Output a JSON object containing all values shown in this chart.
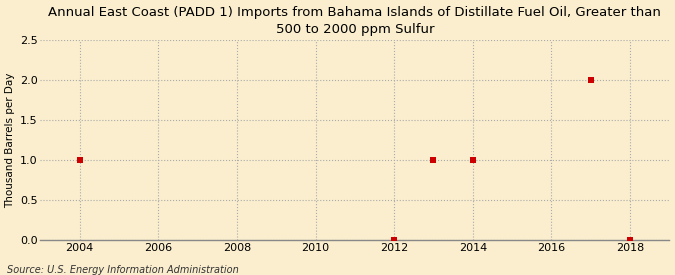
{
  "title": "Annual East Coast (PADD 1) Imports from Bahama Islands of Distillate Fuel Oil, Greater than\n500 to 2000 ppm Sulfur",
  "ylabel": "Thousand Barrels per Day",
  "source": "Source: U.S. Energy Information Administration",
  "background_color": "#faeece",
  "data_x": [
    2004,
    2012,
    2013,
    2014,
    2017,
    2018
  ],
  "data_y": [
    1.0,
    0.0,
    1.0,
    1.0,
    2.0,
    0.0
  ],
  "marker_color": "#cc0000",
  "marker_size": 5,
  "xlim": [
    2003.0,
    2019.0
  ],
  "ylim": [
    0.0,
    2.5
  ],
  "xticks": [
    2004,
    2006,
    2008,
    2010,
    2012,
    2014,
    2016,
    2018
  ],
  "yticks": [
    0.0,
    0.5,
    1.0,
    1.5,
    2.0,
    2.5
  ],
  "grid_color": "#aaaaaa",
  "title_fontsize": 9.5,
  "axis_label_fontsize": 7.5,
  "tick_fontsize": 8,
  "source_fontsize": 7
}
